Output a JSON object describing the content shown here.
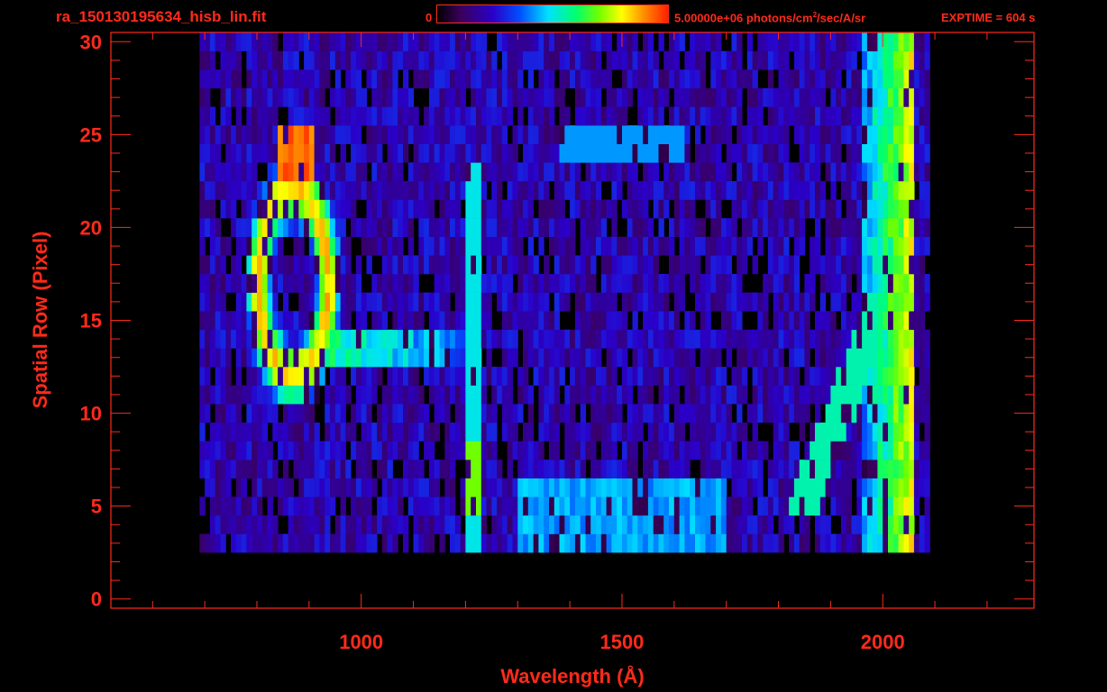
{
  "header": {
    "file_title": "ra_150130195634_hisb_lin.fit",
    "colorbar_min": "0",
    "colorbar_max_prefix": "5.00000e+06 photons/cm",
    "colorbar_max_sup": "2",
    "colorbar_max_suffix": "/sec/A/sr",
    "exptime": "EXPTIME = 604 s"
  },
  "chart_data": {
    "type": "heatmap",
    "title": "ra_150130195634_hisb_lin.fit",
    "xlabel": "Wavelength (Å)",
    "ylabel": "Spatial Row (Pixel)",
    "xlim": [
      520,
      2290
    ],
    "ylim": [
      -0.5,
      30.5
    ],
    "x_ticks": [
      1000,
      1500,
      2000
    ],
    "y_ticks": [
      0,
      5,
      10,
      15,
      20,
      25,
      30
    ],
    "x_tick_labels": [
      "1000",
      "1500",
      "2000"
    ],
    "y_tick_labels": [
      "0",
      "5",
      "10",
      "15",
      "20",
      "25",
      "30"
    ],
    "colorbar": {
      "min": 0,
      "max": 5000000,
      "units": "photons/cm^2/sec/A/sr"
    },
    "data_x_range": [
      690,
      2090
    ],
    "data_rows": [
      3,
      30
    ],
    "features": [
      {
        "name": "bright ring",
        "x_center": 870,
        "row_center": 17,
        "x_radius": 90,
        "row_radius": 6.5,
        "level": 0.85
      },
      {
        "name": "ring top cap",
        "x_range": [
          840,
          910
        ],
        "row_range": [
          23,
          25
        ],
        "level": 0.9
      },
      {
        "name": "emission band",
        "x_range": [
          900,
          1210
        ],
        "row_range": [
          13,
          14
        ],
        "level": 0.6
      },
      {
        "name": "Lyman-alpha line",
        "x": 1216,
        "row_range": [
          3,
          23
        ],
        "level": 0.5
      },
      {
        "name": "Lyman-alpha bright spot",
        "x": 1216,
        "row_range": [
          5,
          8
        ],
        "level": 0.7
      },
      {
        "name": "long-wavelength bright edge",
        "x_range": [
          1960,
          2060
        ],
        "row_range": [
          3,
          30
        ],
        "level": 0.75
      }
    ]
  }
}
